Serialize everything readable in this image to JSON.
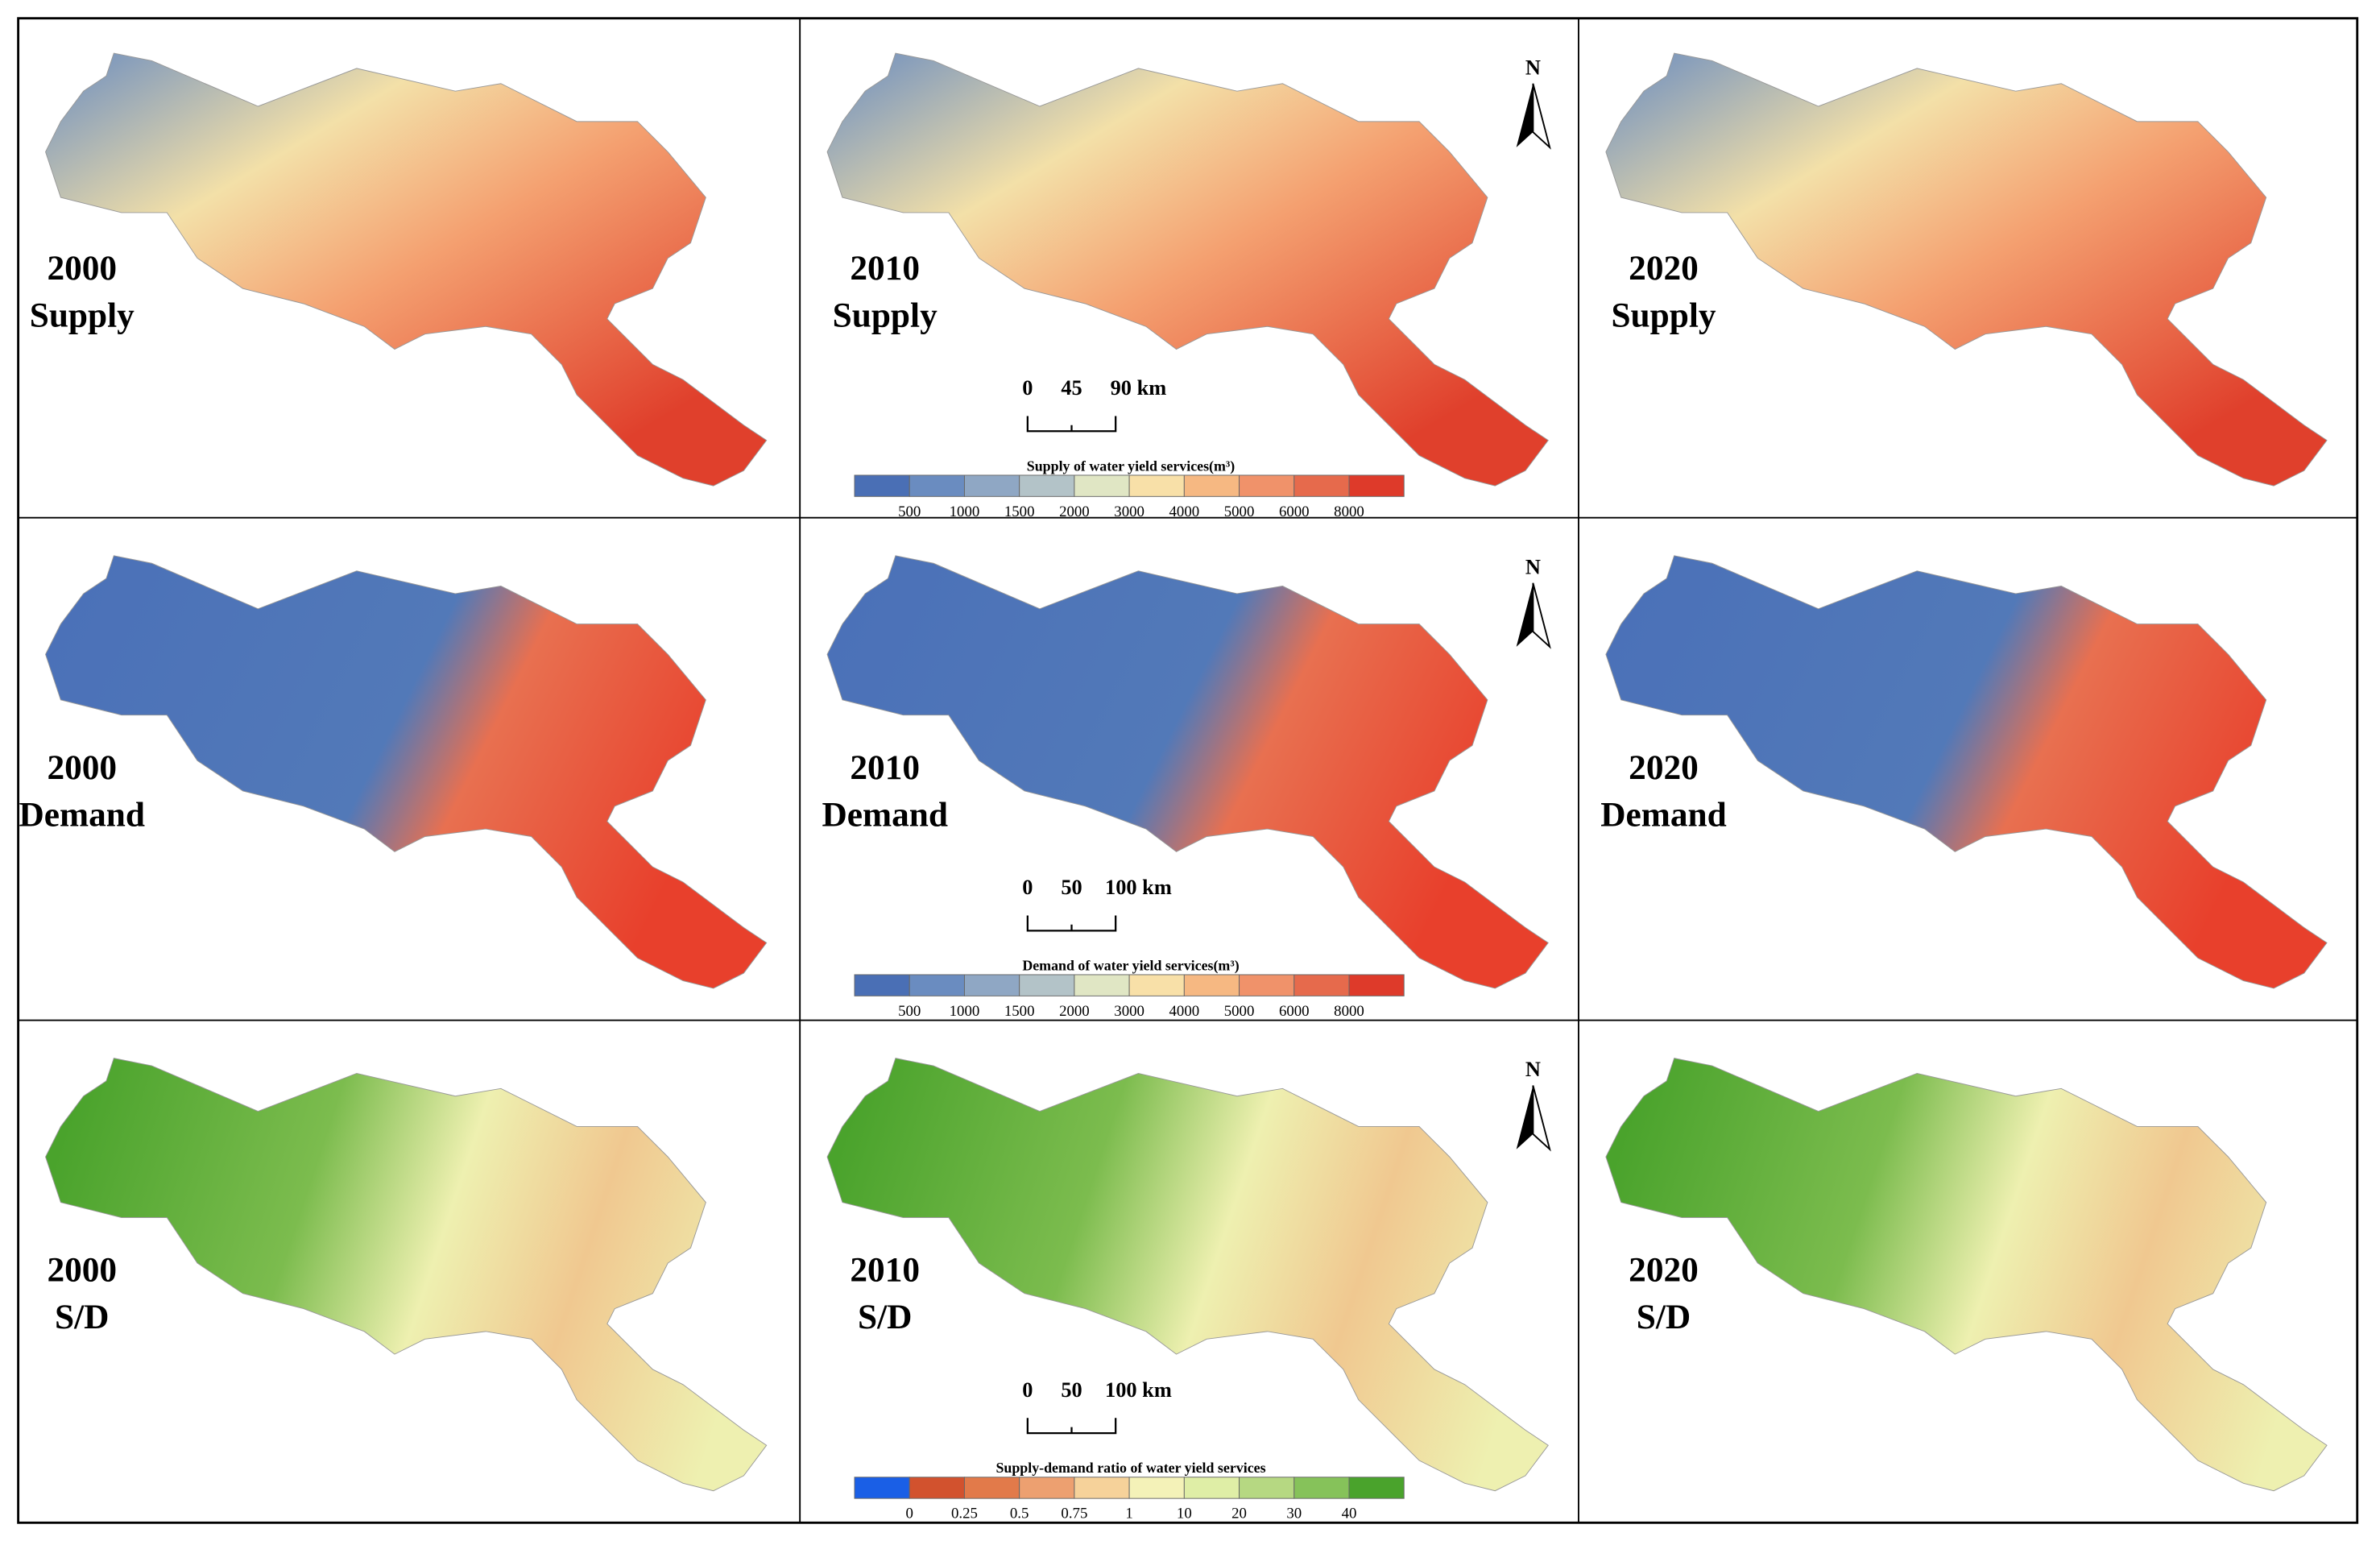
{
  "north_label": "N",
  "rows": [
    {
      "panels": [
        {
          "year": "2000",
          "label": "Supply"
        },
        {
          "year": "2010",
          "label": "Supply"
        },
        {
          "year": "2020",
          "label": "Supply"
        }
      ],
      "scale_bar": [
        "0",
        "45",
        "90 km"
      ],
      "legend": {
        "title": "Supply of water yield services(m³)",
        "colors": [
          "#4a6fb5",
          "#6a8cc0",
          "#8fa7c4",
          "#b3c3c8",
          "#e0e6c4",
          "#f8e0a8",
          "#f6b882",
          "#f0926a",
          "#e66a4c",
          "#de3a2a"
        ],
        "labels": [
          "500",
          "1000",
          "1500",
          "2000",
          "3000",
          "4000",
          "5000",
          "6000",
          "8000"
        ]
      }
    },
    {
      "panels": [
        {
          "year": "2000",
          "label": "Demand"
        },
        {
          "year": "2010",
          "label": "Demand"
        },
        {
          "year": "2020",
          "label": "Demand"
        }
      ],
      "scale_bar": [
        "0",
        "50",
        "100 km"
      ],
      "legend": {
        "title": "Demand of water yield services(m³)",
        "colors": [
          "#4a6fb5",
          "#6a8cc0",
          "#8fa7c4",
          "#b3c3c8",
          "#e0e6c4",
          "#f8e0a8",
          "#f6b882",
          "#f0926a",
          "#e66a4c",
          "#de3a2a"
        ],
        "labels": [
          "500",
          "1000",
          "1500",
          "2000",
          "3000",
          "4000",
          "5000",
          "6000",
          "8000"
        ]
      }
    },
    {
      "panels": [
        {
          "year": "2000",
          "label": "S/D"
        },
        {
          "year": "2010",
          "label": "S/D"
        },
        {
          "year": "2020",
          "label": "S/D"
        }
      ],
      "scale_bar": [
        "0",
        "50",
        "100 km"
      ],
      "legend": {
        "title": "Supply-demand ratio of water yield services",
        "colors": [
          "#1a5fe6",
          "#d2522e",
          "#e27a4a",
          "#eda070",
          "#f6d29a",
          "#f4f2b8",
          "#dfeea6",
          "#b6d882",
          "#86c25a",
          "#4aa32c"
        ],
        "labels": [
          "0",
          "0.25",
          "0.5",
          "0.75",
          "1",
          "10",
          "20",
          "30",
          "40"
        ]
      }
    }
  ]
}
